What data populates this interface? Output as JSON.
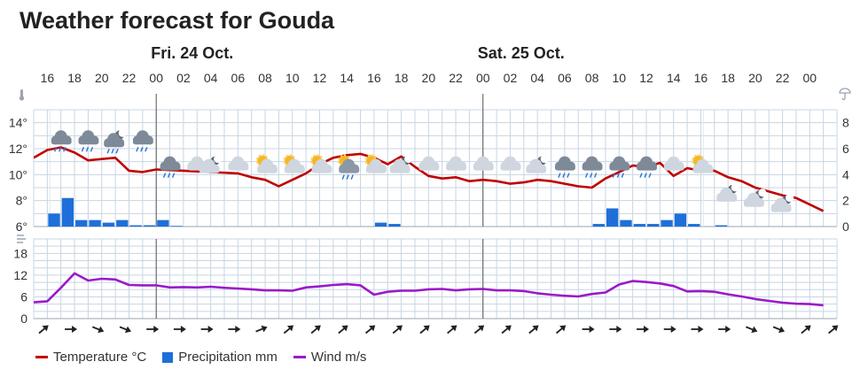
{
  "title": "Weather forecast for Gouda",
  "days": [
    {
      "label": "Fri. 24 Oct.",
      "hour_index": 5
    },
    {
      "label": "Sat. 25 Oct.",
      "hour_index": 17
    }
  ],
  "colors": {
    "temperature": "#c00000",
    "precipitation": "#1e6fd9",
    "wind": "#9b19c9",
    "grid": "#c8d5e3",
    "day_line": "#555555"
  },
  "legend": [
    {
      "label": "Temperature °C",
      "color": "#c00000",
      "kind": "line"
    },
    {
      "label": "Precipitation mm",
      "color": "#1e6fd9",
      "kind": "box"
    },
    {
      "label": "Wind m/s",
      "color": "#9b19c9",
      "kind": "line"
    }
  ],
  "chart_data": [
    {
      "type": "line",
      "hour_labels": [
        "16",
        "18",
        "20",
        "22",
        "00",
        "02",
        "04",
        "06",
        "08",
        "10",
        "12",
        "14",
        "16",
        "18",
        "20",
        "22",
        "00",
        "02",
        "04",
        "06",
        "08",
        "10",
        "12",
        "14",
        "16",
        "18",
        "20",
        "22",
        "00"
      ],
      "x_hours": [
        16,
        18,
        20,
        22,
        24,
        26,
        28,
        30,
        32,
        34,
        36,
        38,
        40,
        42,
        44,
        46,
        48,
        50,
        52,
        54,
        56,
        58,
        60,
        62,
        64,
        66,
        68,
        70,
        72
      ],
      "temperature": {
        "name": "Temperature °C",
        "y_ticks": [
          "6°",
          "8°",
          "10°",
          "12°",
          "14°"
        ],
        "ylim": [
          6,
          15
        ],
        "points": [
          [
            15,
            11.3
          ],
          [
            16,
            11.9
          ],
          [
            17,
            12.1
          ],
          [
            18,
            11.7
          ],
          [
            19,
            11.1
          ],
          [
            20,
            11.2
          ],
          [
            21,
            11.3
          ],
          [
            22,
            10.3
          ],
          [
            23,
            10.2
          ],
          [
            24,
            10.4
          ],
          [
            26,
            10.3
          ],
          [
            28,
            10.2
          ],
          [
            30,
            10.1
          ],
          [
            31,
            9.8
          ],
          [
            32,
            9.6
          ],
          [
            33,
            9.1
          ],
          [
            34,
            9.6
          ],
          [
            35,
            10.1
          ],
          [
            36,
            10.8
          ],
          [
            37,
            11.3
          ],
          [
            38,
            11.5
          ],
          [
            39,
            11.6
          ],
          [
            40,
            11.3
          ],
          [
            41,
            10.8
          ],
          [
            42,
            11.4
          ],
          [
            43,
            10.6
          ],
          [
            44,
            9.9
          ],
          [
            45,
            9.7
          ],
          [
            46,
            9.8
          ],
          [
            47,
            9.5
          ],
          [
            48,
            9.6
          ],
          [
            49,
            9.5
          ],
          [
            50,
            9.3
          ],
          [
            51,
            9.4
          ],
          [
            52,
            9.6
          ],
          [
            53,
            9.5
          ],
          [
            54,
            9.3
          ],
          [
            55,
            9.1
          ],
          [
            56,
            9.0
          ],
          [
            57,
            9.7
          ],
          [
            58,
            10.2
          ],
          [
            59,
            10.7
          ],
          [
            60,
            10.6
          ],
          [
            61,
            10.9
          ],
          [
            62,
            9.9
          ],
          [
            63,
            10.5
          ],
          [
            64,
            10.3
          ],
          [
            65,
            10.3
          ],
          [
            66,
            9.8
          ],
          [
            67,
            9.5
          ],
          [
            68,
            9.0
          ],
          [
            69,
            8.7
          ],
          [
            70,
            8.4
          ],
          [
            71,
            8.2
          ],
          [
            72,
            7.7
          ],
          [
            73,
            7.2
          ]
        ]
      },
      "precipitation": {
        "name": "Precipitation mm",
        "y_ticks": [
          "0",
          "2",
          "4",
          "6",
          "8"
        ],
        "ylim": [
          0,
          9
        ],
        "bars": [
          [
            16,
            1.0
          ],
          [
            17,
            2.2
          ],
          [
            18,
            0.5
          ],
          [
            19,
            0.5
          ],
          [
            20,
            0.3
          ],
          [
            21,
            0.5
          ],
          [
            22,
            0.1
          ],
          [
            23,
            0.1
          ],
          [
            24,
            0.5
          ],
          [
            25,
            0.05
          ],
          [
            40,
            0.3
          ],
          [
            41,
            0.2
          ],
          [
            56,
            0.2
          ],
          [
            57,
            1.4
          ],
          [
            58,
            0.5
          ],
          [
            59,
            0.2
          ],
          [
            60,
            0.2
          ],
          [
            61,
            0.5
          ],
          [
            62,
            1.0
          ],
          [
            63,
            0.2
          ],
          [
            65,
            0.1
          ]
        ]
      },
      "weather_icons": [
        {
          "hour": 17,
          "icon": "rain-cloud-icon"
        },
        {
          "hour": 19,
          "icon": "rain-cloud-icon"
        },
        {
          "hour": 21,
          "icon": "night-rain-icon"
        },
        {
          "hour": 23,
          "icon": "rain-cloud-icon"
        },
        {
          "hour": 25,
          "icon": "rain-cloud-icon"
        },
        {
          "hour": 27,
          "icon": "cloud-icon"
        },
        {
          "hour": 28,
          "icon": "night-cloud-icon"
        },
        {
          "hour": 30,
          "icon": "cloud-icon"
        },
        {
          "hour": 32,
          "icon": "sun-cloud-icon"
        },
        {
          "hour": 34,
          "icon": "sun-cloud-icon"
        },
        {
          "hour": 36,
          "icon": "sun-cloud-icon"
        },
        {
          "hour": 38,
          "icon": "sun-rain-icon"
        },
        {
          "hour": 40,
          "icon": "sun-cloud-icon"
        },
        {
          "hour": 42,
          "icon": "night-cloud-icon"
        },
        {
          "hour": 44,
          "icon": "cloud-icon"
        },
        {
          "hour": 46,
          "icon": "cloud-icon"
        },
        {
          "hour": 48,
          "icon": "cloud-icon"
        },
        {
          "hour": 50,
          "icon": "cloud-icon"
        },
        {
          "hour": 52,
          "icon": "night-cloud-icon"
        },
        {
          "hour": 54,
          "icon": "rain-cloud-icon"
        },
        {
          "hour": 56,
          "icon": "rain-cloud-icon"
        },
        {
          "hour": 58,
          "icon": "rain-cloud-icon"
        },
        {
          "hour": 60,
          "icon": "rain-cloud-icon"
        },
        {
          "hour": 62,
          "icon": "cloud-icon"
        },
        {
          "hour": 64,
          "icon": "sun-cloud-icon"
        },
        {
          "hour": 66,
          "icon": "night-cloud-icon"
        },
        {
          "hour": 68,
          "icon": "night-cloud-icon"
        },
        {
          "hour": 70,
          "icon": "night-cloud-icon"
        }
      ]
    },
    {
      "type": "line",
      "wind": {
        "name": "Wind m/s",
        "y_ticks": [
          "0",
          "6",
          "12",
          "18"
        ],
        "ylim": [
          0,
          22
        ],
        "points": [
          [
            15,
            4.5
          ],
          [
            16,
            4.8
          ],
          [
            17,
            8.5
          ],
          [
            18,
            12.5
          ],
          [
            19,
            10.5
          ],
          [
            20,
            11.0
          ],
          [
            21,
            10.8
          ],
          [
            22,
            9.3
          ],
          [
            23,
            9.2
          ],
          [
            24,
            9.2
          ],
          [
            25,
            8.6
          ],
          [
            26,
            8.7
          ],
          [
            27,
            8.6
          ],
          [
            28,
            8.8
          ],
          [
            29,
            8.5
          ],
          [
            30,
            8.3
          ],
          [
            31,
            8.1
          ],
          [
            32,
            7.8
          ],
          [
            33,
            7.8
          ],
          [
            34,
            7.7
          ],
          [
            35,
            8.6
          ],
          [
            36,
            8.9
          ],
          [
            37,
            9.3
          ],
          [
            38,
            9.5
          ],
          [
            39,
            9.2
          ],
          [
            40,
            6.6
          ],
          [
            41,
            7.4
          ],
          [
            42,
            7.7
          ],
          [
            43,
            7.7
          ],
          [
            44,
            8.1
          ],
          [
            45,
            8.2
          ],
          [
            46,
            7.8
          ],
          [
            47,
            8.1
          ],
          [
            48,
            8.2
          ],
          [
            49,
            7.8
          ],
          [
            50,
            7.8
          ],
          [
            51,
            7.6
          ],
          [
            52,
            7.0
          ],
          [
            53,
            6.6
          ],
          [
            54,
            6.3
          ],
          [
            55,
            6.1
          ],
          [
            56,
            6.8
          ],
          [
            57,
            7.2
          ],
          [
            58,
            9.4
          ],
          [
            59,
            10.4
          ],
          [
            60,
            10.1
          ],
          [
            61,
            9.7
          ],
          [
            62,
            9.0
          ],
          [
            63,
            7.5
          ],
          [
            64,
            7.6
          ],
          [
            65,
            7.4
          ],
          [
            66,
            6.7
          ],
          [
            67,
            6.1
          ],
          [
            68,
            5.4
          ],
          [
            69,
            4.9
          ],
          [
            70,
            4.4
          ],
          [
            71,
            4.1
          ],
          [
            72,
            4.0
          ],
          [
            73,
            3.7
          ]
        ]
      },
      "wind_direction_arrows": [
        {
          "hour": 16,
          "dir": "NE"
        },
        {
          "hour": 18,
          "dir": "E"
        },
        {
          "hour": 20,
          "dir": "ESE"
        },
        {
          "hour": 22,
          "dir": "ESE"
        },
        {
          "hour": 24,
          "dir": "E"
        },
        {
          "hour": 26,
          "dir": "E"
        },
        {
          "hour": 28,
          "dir": "E"
        },
        {
          "hour": 30,
          "dir": "E"
        },
        {
          "hour": 32,
          "dir": "ENE"
        },
        {
          "hour": 34,
          "dir": "NE"
        },
        {
          "hour": 36,
          "dir": "NE"
        },
        {
          "hour": 38,
          "dir": "NE"
        },
        {
          "hour": 40,
          "dir": "NE"
        },
        {
          "hour": 42,
          "dir": "NE"
        },
        {
          "hour": 44,
          "dir": "NE"
        },
        {
          "hour": 46,
          "dir": "NE"
        },
        {
          "hour": 48,
          "dir": "NE"
        },
        {
          "hour": 50,
          "dir": "NE"
        },
        {
          "hour": 52,
          "dir": "NE"
        },
        {
          "hour": 54,
          "dir": "NE"
        },
        {
          "hour": 56,
          "dir": "E"
        },
        {
          "hour": 58,
          "dir": "E"
        },
        {
          "hour": 60,
          "dir": "E"
        },
        {
          "hour": 62,
          "dir": "E"
        },
        {
          "hour": 64,
          "dir": "E"
        },
        {
          "hour": 66,
          "dir": "E"
        },
        {
          "hour": 68,
          "dir": "ESE"
        },
        {
          "hour": 70,
          "dir": "ESE"
        },
        {
          "hour": 72,
          "dir": "NE"
        },
        {
          "hour": 74,
          "dir": "NE"
        }
      ]
    }
  ]
}
